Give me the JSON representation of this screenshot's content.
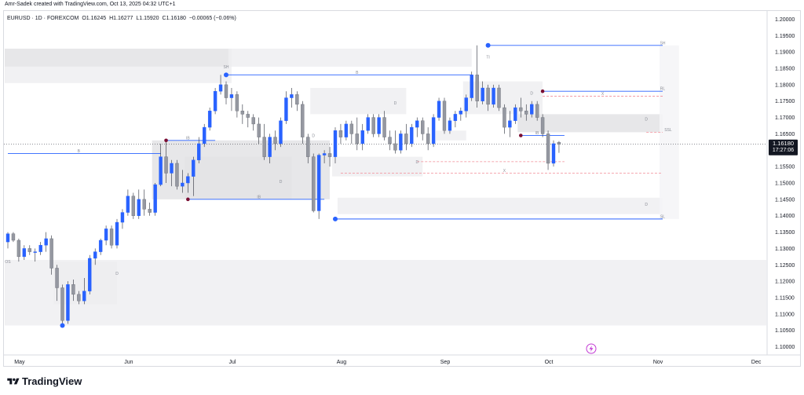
{
  "header": {
    "credit": "Amr-Sadek created with TradingView.com, Oct 13, 2025 04:32 UTC+1"
  },
  "symbol_line": {
    "symbol": "EURUSD · 1D · FOREXCOM",
    "open": "O1.16245",
    "high": "H1.16277",
    "low": "L1.15920",
    "close": "C1.16180",
    "change": "−0.00065 (−0.06%)"
  },
  "price_tag": {
    "price": "1.16180",
    "countdown": "17:27:06"
  },
  "footer": {
    "brand": "TradingView"
  },
  "colors": {
    "bull": "#2962ff",
    "bear": "#9598a1",
    "zone": "#e6e6e6",
    "level_line": "#2962ff",
    "dashed_level": "#f28b96",
    "pivot_marker": "#7a0d32",
    "lightning_icon": "#c23bd4"
  },
  "chart_data": {
    "type": "candlestick",
    "x_axis": {
      "month_labels": [
        "May",
        "Jun",
        "Jul",
        "Aug",
        "Sep",
        "Oct",
        "Nov",
        "Dec"
      ]
    },
    "y_axis": {
      "range": [
        1.0975,
        1.2025
      ],
      "ticks": [
        "1.20000",
        "1.19500",
        "1.19000",
        "1.18500",
        "1.18000",
        "1.17500",
        "1.17000",
        "1.16500",
        "1.16000",
        "1.15500",
        "1.15000",
        "1.14500",
        "1.14000",
        "1.13500",
        "1.13000",
        "1.12500",
        "1.12000",
        "1.11500",
        "1.11000",
        "1.10500",
        "1.10000"
      ]
    },
    "last_price": 1.1618,
    "candles": [
      {
        "o": 1.132,
        "h": 1.135,
        "l": 1.13,
        "c": 1.1345
      },
      {
        "o": 1.1345,
        "h": 1.135,
        "l": 1.132,
        "c": 1.1325
      },
      {
        "o": 1.1325,
        "h": 1.133,
        "l": 1.126,
        "c": 1.1275
      },
      {
        "o": 1.1275,
        "h": 1.131,
        "l": 1.1265,
        "c": 1.13
      },
      {
        "o": 1.13,
        "h": 1.131,
        "l": 1.128,
        "c": 1.129
      },
      {
        "o": 1.129,
        "h": 1.13,
        "l": 1.126,
        "c": 1.129
      },
      {
        "o": 1.129,
        "h": 1.132,
        "l": 1.128,
        "c": 1.131
      },
      {
        "o": 1.131,
        "h": 1.135,
        "l": 1.129,
        "c": 1.133
      },
      {
        "o": 1.133,
        "h": 1.134,
        "l": 1.122,
        "c": 1.124
      },
      {
        "o": 1.124,
        "h": 1.125,
        "l": 1.114,
        "c": 1.118
      },
      {
        "o": 1.118,
        "h": 1.119,
        "l": 1.1065,
        "c": 1.108
      },
      {
        "o": 1.108,
        "h": 1.12,
        "l": 1.107,
        "c": 1.119
      },
      {
        "o": 1.119,
        "h": 1.1205,
        "l": 1.114,
        "c": 1.116
      },
      {
        "o": 1.116,
        "h": 1.117,
        "l": 1.113,
        "c": 1.114
      },
      {
        "o": 1.114,
        "h": 1.121,
        "l": 1.113,
        "c": 1.117
      },
      {
        "o": 1.117,
        "h": 1.128,
        "l": 1.116,
        "c": 1.127
      },
      {
        "o": 1.127,
        "h": 1.13,
        "l": 1.125,
        "c": 1.129
      },
      {
        "o": 1.129,
        "h": 1.133,
        "l": 1.128,
        "c": 1.1325
      },
      {
        "o": 1.1325,
        "h": 1.137,
        "l": 1.131,
        "c": 1.136
      },
      {
        "o": 1.136,
        "h": 1.137,
        "l": 1.13,
        "c": 1.131
      },
      {
        "o": 1.131,
        "h": 1.139,
        "l": 1.13,
        "c": 1.138
      },
      {
        "o": 1.138,
        "h": 1.142,
        "l": 1.136,
        "c": 1.141
      },
      {
        "o": 1.141,
        "h": 1.148,
        "l": 1.14,
        "c": 1.146
      },
      {
        "o": 1.146,
        "h": 1.147,
        "l": 1.139,
        "c": 1.14
      },
      {
        "o": 1.14,
        "h": 1.148,
        "l": 1.139,
        "c": 1.145
      },
      {
        "o": 1.145,
        "h": 1.148,
        "l": 1.14,
        "c": 1.142
      },
      {
        "o": 1.142,
        "h": 1.144,
        "l": 1.14,
        "c": 1.141
      },
      {
        "o": 1.141,
        "h": 1.15,
        "l": 1.14,
        "c": 1.1495
      },
      {
        "o": 1.1495,
        "h": 1.162,
        "l": 1.149,
        "c": 1.158
      },
      {
        "o": 1.158,
        "h": 1.163,
        "l": 1.15,
        "c": 1.153
      },
      {
        "o": 1.153,
        "h": 1.157,
        "l": 1.149,
        "c": 1.156
      },
      {
        "o": 1.156,
        "h": 1.157,
        "l": 1.148,
        "c": 1.149
      },
      {
        "o": 1.149,
        "h": 1.154,
        "l": 1.147,
        "c": 1.15
      },
      {
        "o": 1.15,
        "h": 1.153,
        "l": 1.147,
        "c": 1.152
      },
      {
        "o": 1.152,
        "h": 1.158,
        "l": 1.146,
        "c": 1.157
      },
      {
        "o": 1.157,
        "h": 1.164,
        "l": 1.156,
        "c": 1.162
      },
      {
        "o": 1.162,
        "h": 1.168,
        "l": 1.161,
        "c": 1.167
      },
      {
        "o": 1.167,
        "h": 1.173,
        "l": 1.166,
        "c": 1.172
      },
      {
        "o": 1.172,
        "h": 1.179,
        "l": 1.171,
        "c": 1.178
      },
      {
        "o": 1.178,
        "h": 1.183,
        "l": 1.177,
        "c": 1.18
      },
      {
        "o": 1.18,
        "h": 1.181,
        "l": 1.174,
        "c": 1.176
      },
      {
        "o": 1.176,
        "h": 1.179,
        "l": 1.172,
        "c": 1.177
      },
      {
        "o": 1.177,
        "h": 1.178,
        "l": 1.17,
        "c": 1.172
      },
      {
        "o": 1.172,
        "h": 1.174,
        "l": 1.168,
        "c": 1.171
      },
      {
        "o": 1.171,
        "h": 1.172,
        "l": 1.167,
        "c": 1.17
      },
      {
        "o": 1.17,
        "h": 1.171,
        "l": 1.166,
        "c": 1.168
      },
      {
        "o": 1.168,
        "h": 1.17,
        "l": 1.162,
        "c": 1.164
      },
      {
        "o": 1.164,
        "h": 1.168,
        "l": 1.157,
        "c": 1.158
      },
      {
        "o": 1.158,
        "h": 1.165,
        "l": 1.156,
        "c": 1.164
      },
      {
        "o": 1.164,
        "h": 1.166,
        "l": 1.16,
        "c": 1.162
      },
      {
        "o": 1.162,
        "h": 1.17,
        "l": 1.161,
        "c": 1.169
      },
      {
        "o": 1.169,
        "h": 1.178,
        "l": 1.168,
        "c": 1.176
      },
      {
        "o": 1.176,
        "h": 1.179,
        "l": 1.173,
        "c": 1.177
      },
      {
        "o": 1.177,
        "h": 1.178,
        "l": 1.172,
        "c": 1.174
      },
      {
        "o": 1.174,
        "h": 1.175,
        "l": 1.162,
        "c": 1.164
      },
      {
        "o": 1.164,
        "h": 1.165,
        "l": 1.156,
        "c": 1.158
      },
      {
        "o": 1.158,
        "h": 1.159,
        "l": 1.141,
        "c": 1.1415
      },
      {
        "o": 1.1415,
        "h": 1.159,
        "l": 1.139,
        "c": 1.1585
      },
      {
        "o": 1.1585,
        "h": 1.16,
        "l": 1.156,
        "c": 1.159
      },
      {
        "o": 1.159,
        "h": 1.161,
        "l": 1.155,
        "c": 1.158
      },
      {
        "o": 1.158,
        "h": 1.167,
        "l": 1.156,
        "c": 1.166
      },
      {
        "o": 1.166,
        "h": 1.168,
        "l": 1.162,
        "c": 1.164
      },
      {
        "o": 1.164,
        "h": 1.169,
        "l": 1.163,
        "c": 1.168
      },
      {
        "o": 1.168,
        "h": 1.169,
        "l": 1.162,
        "c": 1.165
      },
      {
        "o": 1.165,
        "h": 1.17,
        "l": 1.16,
        "c": 1.162
      },
      {
        "o": 1.162,
        "h": 1.168,
        "l": 1.16,
        "c": 1.166
      },
      {
        "o": 1.166,
        "h": 1.171,
        "l": 1.165,
        "c": 1.17
      },
      {
        "o": 1.17,
        "h": 1.171,
        "l": 1.164,
        "c": 1.165
      },
      {
        "o": 1.165,
        "h": 1.171,
        "l": 1.164,
        "c": 1.17
      },
      {
        "o": 1.17,
        "h": 1.172,
        "l": 1.163,
        "c": 1.164
      },
      {
        "o": 1.164,
        "h": 1.166,
        "l": 1.16,
        "c": 1.162
      },
      {
        "o": 1.162,
        "h": 1.166,
        "l": 1.159,
        "c": 1.16
      },
      {
        "o": 1.16,
        "h": 1.166,
        "l": 1.159,
        "c": 1.165
      },
      {
        "o": 1.165,
        "h": 1.168,
        "l": 1.16,
        "c": 1.162
      },
      {
        "o": 1.162,
        "h": 1.168,
        "l": 1.161,
        "c": 1.167
      },
      {
        "o": 1.167,
        "h": 1.17,
        "l": 1.164,
        "c": 1.169
      },
      {
        "o": 1.169,
        "h": 1.17,
        "l": 1.163,
        "c": 1.165
      },
      {
        "o": 1.165,
        "h": 1.167,
        "l": 1.16,
        "c": 1.162
      },
      {
        "o": 1.162,
        "h": 1.171,
        "l": 1.161,
        "c": 1.17
      },
      {
        "o": 1.17,
        "h": 1.176,
        "l": 1.169,
        "c": 1.175
      },
      {
        "o": 1.175,
        "h": 1.176,
        "l": 1.165,
        "c": 1.166
      },
      {
        "o": 1.166,
        "h": 1.17,
        "l": 1.165,
        "c": 1.169
      },
      {
        "o": 1.169,
        "h": 1.172,
        "l": 1.167,
        "c": 1.171
      },
      {
        "o": 1.171,
        "h": 1.173,
        "l": 1.169,
        "c": 1.172
      },
      {
        "o": 1.172,
        "h": 1.177,
        "l": 1.17,
        "c": 1.176
      },
      {
        "o": 1.176,
        "h": 1.184,
        "l": 1.175,
        "c": 1.183
      },
      {
        "o": 1.183,
        "h": 1.192,
        "l": 1.173,
        "c": 1.175
      },
      {
        "o": 1.175,
        "h": 1.181,
        "l": 1.174,
        "c": 1.179
      },
      {
        "o": 1.179,
        "h": 1.18,
        "l": 1.172,
        "c": 1.174
      },
      {
        "o": 1.174,
        "h": 1.18,
        "l": 1.173,
        "c": 1.179
      },
      {
        "o": 1.179,
        "h": 1.18,
        "l": 1.172,
        "c": 1.173
      },
      {
        "o": 1.173,
        "h": 1.174,
        "l": 1.165,
        "c": 1.167
      },
      {
        "o": 1.167,
        "h": 1.172,
        "l": 1.164,
        "c": 1.169
      },
      {
        "o": 1.169,
        "h": 1.174,
        "l": 1.168,
        "c": 1.173
      },
      {
        "o": 1.173,
        "h": 1.176,
        "l": 1.17,
        "c": 1.172
      },
      {
        "o": 1.172,
        "h": 1.174,
        "l": 1.169,
        "c": 1.171
      },
      {
        "o": 1.171,
        "h": 1.175,
        "l": 1.17,
        "c": 1.174
      },
      {
        "o": 1.174,
        "h": 1.175,
        "l": 1.169,
        "c": 1.17
      },
      {
        "o": 1.17,
        "h": 1.171,
        "l": 1.164,
        "c": 1.165
      },
      {
        "o": 1.165,
        "h": 1.166,
        "l": 1.154,
        "c": 1.156
      },
      {
        "o": 1.156,
        "h": 1.163,
        "l": 1.155,
        "c": 1.162
      },
      {
        "o": 1.1624,
        "h": 1.1628,
        "l": 1.1592,
        "c": 1.1618
      }
    ],
    "zones": [
      {
        "x0": 0,
        "x1": 41,
        "top": 1.191,
        "bottom": 1.1855,
        "shade": "mid"
      },
      {
        "x0": 0,
        "x1": 41,
        "top": 1.1855,
        "bottom": 1.1805,
        "shade": "light"
      },
      {
        "x0": 41,
        "x1": 85,
        "top": 1.191,
        "bottom": 1.1855,
        "shade": "light"
      },
      {
        "x0": 27,
        "x1": 59,
        "top": 1.163,
        "bottom": 1.145,
        "shade": "mid"
      },
      {
        "x0": 33,
        "x1": 52,
        "top": 1.158,
        "bottom": 1.145,
        "shade": "mid"
      },
      {
        "x0": 56,
        "x1": 73,
        "top": 1.179,
        "bottom": 1.171,
        "shade": "light"
      },
      {
        "x0": 60,
        "x1": 76,
        "top": 1.158,
        "bottom": 1.152,
        "shade": "light"
      },
      {
        "x0": 79,
        "x1": 84,
        "top": 1.166,
        "bottom": 1.163,
        "shade": "light"
      },
      {
        "x0": 84,
        "x1": 98,
        "top": 1.181,
        "bottom": 1.171,
        "shade": "light"
      },
      {
        "x0": 94,
        "x1": 120,
        "top": 1.171,
        "bottom": 1.1655,
        "shade": "mid"
      },
      {
        "x0": 61,
        "x1": 120,
        "top": 1.1455,
        "bottom": 1.1405,
        "shade": "light"
      },
      {
        "x0": 9,
        "x1": 20,
        "top": 1.126,
        "bottom": 1.113,
        "shade": "mid"
      },
      {
        "x0": 0,
        "x1": 140,
        "top": 1.1265,
        "bottom": 1.1065,
        "shade": "light"
      },
      {
        "x0": 120,
        "x1": 123,
        "top": 1.192,
        "bottom": 1.139,
        "shade": "faint"
      }
    ],
    "levels": [
      {
        "from": 0,
        "to": 28,
        "price": 1.159,
        "color": "blue",
        "dashed": false,
        "label": "B",
        "label_idx": 13
      },
      {
        "from": 40,
        "to": 85,
        "price": 1.183,
        "color": "blue",
        "dashed": false,
        "label": "B",
        "label_idx": 64
      },
      {
        "from": 60,
        "to": 120,
        "price": 1.139,
        "color": "blue",
        "dashed": false,
        "label": "SL",
        "label_idx": 120
      },
      {
        "from": 88,
        "to": 120,
        "price": 1.192,
        "color": "blue",
        "dashed": false,
        "label": "SH",
        "label_idx": 120
      },
      {
        "from": 33,
        "to": 58,
        "price": 1.145,
        "color": "blue",
        "dashed": false,
        "label": "IB",
        "label_idx": 46
      },
      {
        "from": 29,
        "to": 38,
        "price": 1.163,
        "color": "blue",
        "dashed": false,
        "label": "IB",
        "label_idx": 33
      },
      {
        "from": 98,
        "to": 120,
        "price": 1.178,
        "color": "blue",
        "dashed": false,
        "label": "RL",
        "label_idx": 120
      },
      {
        "from": 94,
        "to": 102,
        "price": 1.1645,
        "color": "blue",
        "dashed": false,
        "label": "IB",
        "label_idx": 97
      },
      {
        "from": 61,
        "to": 120,
        "price": 1.153,
        "color": "red",
        "dashed": true,
        "label": "X",
        "label_idx": 91
      },
      {
        "from": 75,
        "to": 102,
        "price": 1.1565,
        "color": "red",
        "dashed": true,
        "label": "X",
        "label_idx": 100
      },
      {
        "from": 98,
        "to": 120,
        "price": 1.1765,
        "color": "red",
        "dashed": true,
        "label": "X",
        "label_idx": 109
      },
      {
        "from": 117,
        "to": 120,
        "price": 1.1655,
        "color": "red",
        "dashed": true,
        "label": "SSL",
        "label_idx": 121
      }
    ],
    "pivots": [
      {
        "idx": 10,
        "price": 1.1065,
        "type": "low",
        "color": "blue"
      },
      {
        "idx": 40,
        "price": 1.183,
        "type": "high",
        "color": "blue"
      },
      {
        "idx": 60,
        "price": 1.139,
        "type": "low",
        "color": "blue"
      },
      {
        "idx": 88,
        "price": 1.192,
        "type": "high",
        "color": "blue"
      },
      {
        "idx": 29,
        "price": 1.163,
        "type": "high",
        "color": "maroon"
      },
      {
        "idx": 33,
        "price": 1.145,
        "type": "low",
        "color": "maroon"
      },
      {
        "idx": 94,
        "price": 1.1645,
        "type": "low",
        "color": "maroon"
      },
      {
        "idx": 98,
        "price": 1.178,
        "type": "high",
        "color": "maroon"
      }
    ],
    "annotations": [
      {
        "text": "OS",
        "idx": 0,
        "price": 1.1255
      },
      {
        "text": "SH",
        "idx": 40,
        "price": 1.185
      },
      {
        "text": "D",
        "idx": 20,
        "price": 1.122
      },
      {
        "text": "D",
        "idx": 50,
        "price": 1.15
      },
      {
        "text": "D",
        "idx": 56,
        "price": 1.164
      },
      {
        "text": "D",
        "idx": 71,
        "price": 1.174
      },
      {
        "text": "D",
        "idx": 75,
        "price": 1.156
      },
      {
        "text": "D",
        "idx": 117,
        "price": 1.169
      },
      {
        "text": "D",
        "idx": 117,
        "price": 1.143
      },
      {
        "text": "D",
        "idx": 96,
        "price": 1.177
      },
      {
        "text": "TI",
        "idx": 88,
        "price": 1.188
      }
    ]
  }
}
